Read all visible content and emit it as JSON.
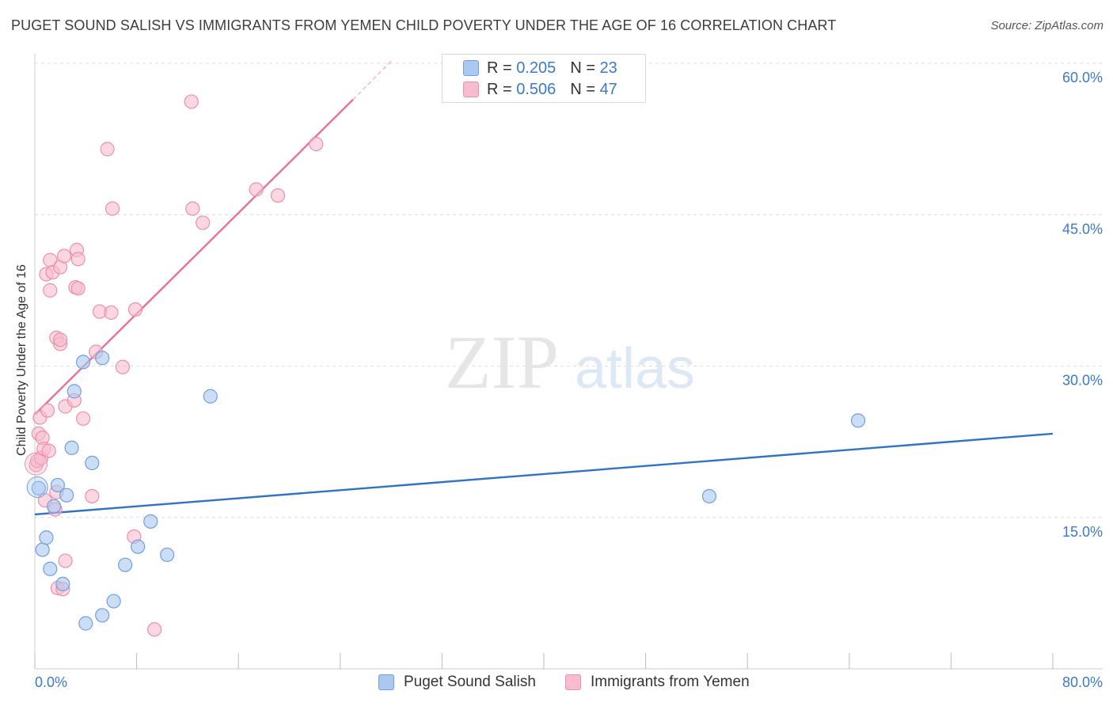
{
  "header": {
    "title": "PUGET SOUND SALISH VS IMMIGRANTS FROM YEMEN CHILD POVERTY UNDER THE AGE OF 16 CORRELATION CHART",
    "source": "Source: ZipAtlas.com"
  },
  "watermark": {
    "zip": "ZIP",
    "atlas": "atlas"
  },
  "colors": {
    "blue_fill": "#aac8f0",
    "blue_stroke": "#6f9fe0",
    "blue_line": "#2f72c9",
    "pink_fill": "#f7bccd",
    "pink_stroke": "#ec8fab",
    "pink_line": "#e8709a",
    "axis_label": "#3b7ac9",
    "grid": "#dcdcdc"
  },
  "legend": {
    "items": [
      {
        "r_label": "R =",
        "r_value": "0.205",
        "n_label": "N =",
        "n_value": "23"
      },
      {
        "r_label": "R =",
        "r_value": "0.506",
        "n_label": "N =",
        "n_value": "47"
      }
    ],
    "bottom": [
      "Puget Sound Salish",
      "Immigrants from Yemen"
    ]
  },
  "chart_data": {
    "type": "scatter",
    "title": "PUGET SOUND SALISH VS IMMIGRANTS FROM YEMEN CHILD POVERTY UNDER THE AGE OF 16 CORRELATION CHART",
    "xlabel": "",
    "ylabel": "Child Poverty Under the Age of 16",
    "xlim": [
      0,
      80
    ],
    "ylim": [
      0,
      60
    ],
    "x_tick_labels": [
      "0.0%",
      "80.0%"
    ],
    "y_ticks": [
      15,
      30,
      45,
      60
    ],
    "y_tick_labels": [
      "15.0%",
      "30.0%",
      "45.0%",
      "60.0%"
    ],
    "grid": true,
    "legend_position": "top-center",
    "series": [
      {
        "name": "Puget Sound Salish",
        "R": 0.205,
        "N": 23,
        "trend": {
          "x": [
            0,
            80
          ],
          "y": [
            15.3,
            23.3
          ]
        },
        "points": [
          [
            0.3,
            17.9
          ],
          [
            0.6,
            11.8
          ],
          [
            0.9,
            13.0
          ],
          [
            1.2,
            9.9
          ],
          [
            1.5,
            16.1
          ],
          [
            1.8,
            18.2
          ],
          [
            2.2,
            8.4
          ],
          [
            2.5,
            17.2
          ],
          [
            2.9,
            21.9
          ],
          [
            3.1,
            27.5
          ],
          [
            3.8,
            30.4
          ],
          [
            4.0,
            4.5
          ],
          [
            4.5,
            20.4
          ],
          [
            5.3,
            5.3
          ],
          [
            5.3,
            30.8
          ],
          [
            6.2,
            6.7
          ],
          [
            7.1,
            10.3
          ],
          [
            8.1,
            12.1
          ],
          [
            9.1,
            14.6
          ],
          [
            10.4,
            11.3
          ],
          [
            13.8,
            27.0
          ],
          [
            53.0,
            17.1
          ],
          [
            64.7,
            24.6
          ]
        ]
      },
      {
        "name": "Immigrants from Yemen",
        "R": 0.506,
        "N": 47,
        "trend": {
          "x": [
            0,
            25
          ],
          "y": [
            25.2,
            56.4
          ]
        },
        "trend_dashed": {
          "x": [
            25,
            28
          ],
          "y": [
            56.4,
            60.2
          ]
        },
        "points": [
          [
            0.1,
            20.2
          ],
          [
            0.2,
            20.6
          ],
          [
            0.3,
            23.3
          ],
          [
            0.4,
            24.9
          ],
          [
            0.5,
            20.9
          ],
          [
            0.6,
            22.9
          ],
          [
            0.7,
            21.8
          ],
          [
            0.8,
            16.7
          ],
          [
            0.9,
            39.1
          ],
          [
            1.0,
            25.6
          ],
          [
            1.1,
            21.6
          ],
          [
            1.2,
            37.5
          ],
          [
            1.2,
            40.5
          ],
          [
            1.4,
            39.3
          ],
          [
            1.6,
            15.8
          ],
          [
            1.7,
            17.5
          ],
          [
            1.7,
            32.8
          ],
          [
            1.8,
            8.0
          ],
          [
            2.0,
            32.2
          ],
          [
            2.0,
            32.6
          ],
          [
            2.0,
            39.8
          ],
          [
            2.2,
            7.9
          ],
          [
            2.3,
            40.9
          ],
          [
            2.4,
            10.7
          ],
          [
            2.4,
            26.0
          ],
          [
            3.1,
            26.6
          ],
          [
            3.2,
            37.8
          ],
          [
            3.3,
            41.5
          ],
          [
            3.4,
            37.7
          ],
          [
            3.4,
            40.6
          ],
          [
            3.8,
            24.8
          ],
          [
            4.5,
            17.1
          ],
          [
            4.8,
            31.4
          ],
          [
            5.1,
            35.4
          ],
          [
            5.7,
            51.5
          ],
          [
            6.0,
            35.3
          ],
          [
            6.1,
            45.6
          ],
          [
            6.9,
            29.9
          ],
          [
            7.8,
            13.1
          ],
          [
            7.9,
            35.6
          ],
          [
            9.4,
            3.9
          ],
          [
            12.3,
            56.2
          ],
          [
            12.4,
            45.6
          ],
          [
            13.2,
            44.2
          ],
          [
            17.4,
            47.5
          ],
          [
            19.1,
            46.9
          ],
          [
            22.1,
            52.0
          ]
        ]
      }
    ]
  }
}
